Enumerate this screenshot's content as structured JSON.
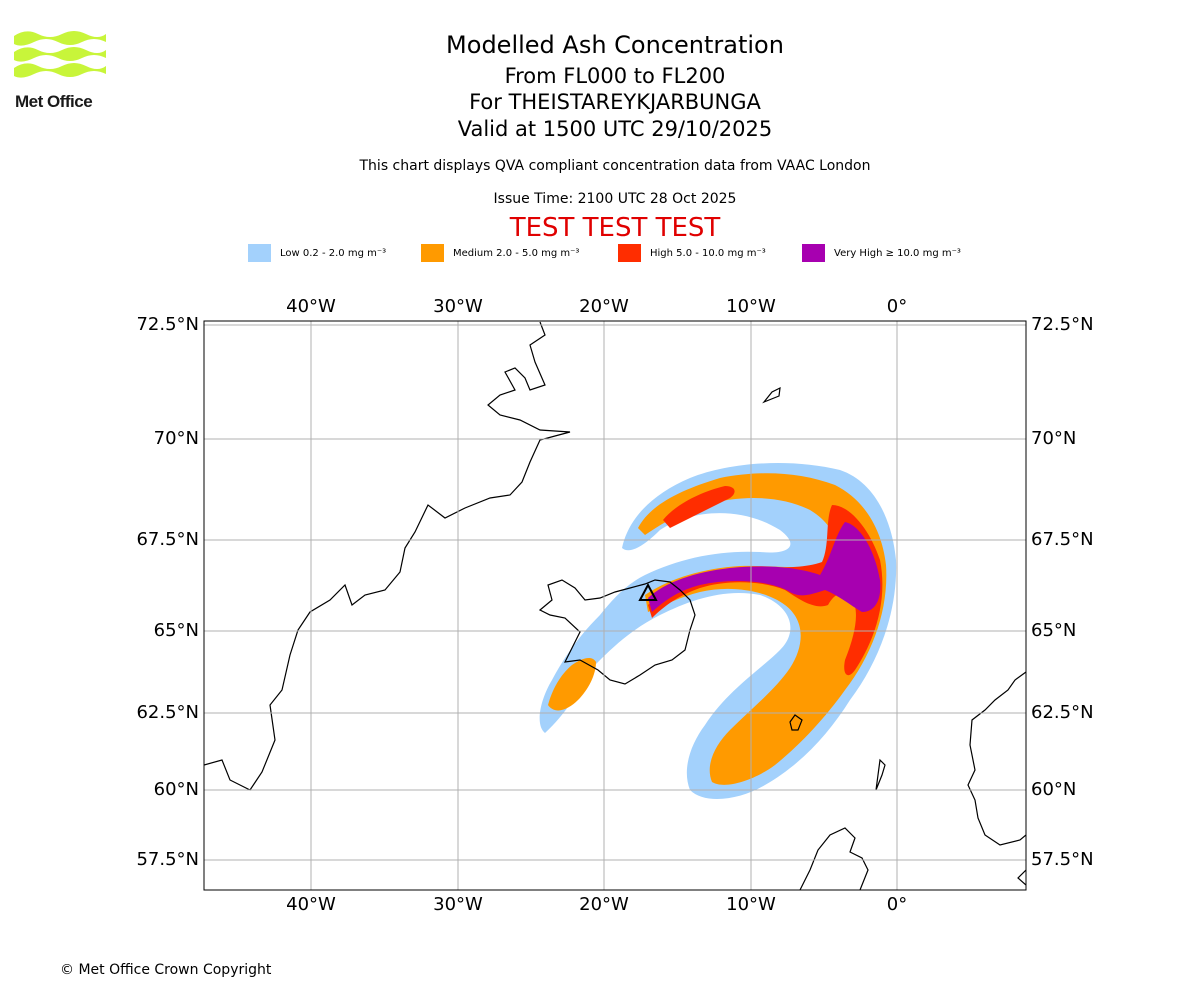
{
  "brand": {
    "name": "Met Office",
    "logo_color": "#c8f53a"
  },
  "header": {
    "title": "Modelled Ash Concentration",
    "levels": "From FL000 to FL200",
    "volcano": "For THEISTAREYKJARBUNGA",
    "valid": "Valid at 1500 UTC 29/10/2025",
    "subtitle": "This chart displays QVA compliant concentration data from VAAC London",
    "issue_time": "Issue Time: 2100 UTC 28 Oct 2025",
    "test_banner": "TEST TEST TEST"
  },
  "legend": [
    {
      "label": "Low 0.2 - 2.0 mg m⁻³",
      "color": "#a3d1fc"
    },
    {
      "label": "Medium 2.0 - 5.0 mg m⁻³",
      "color": "#ff9a00"
    },
    {
      "label": "High 5.0 - 10.0 mg m⁻³",
      "color": "#ff2d00"
    },
    {
      "label": "Very High  ≥  10.0 mg m⁻³",
      "color": "#a700b0"
    }
  ],
  "map": {
    "lon_labels": [
      "40°W",
      "30°W",
      "20°W",
      "10°W",
      "0°"
    ],
    "lat_labels": [
      "72.5°N",
      "70°N",
      "67.5°N",
      "65°N",
      "62.5°N",
      "60°N",
      "57.5°N"
    ]
  },
  "footer": {
    "copyright": "© Met Office Crown Copyright"
  }
}
